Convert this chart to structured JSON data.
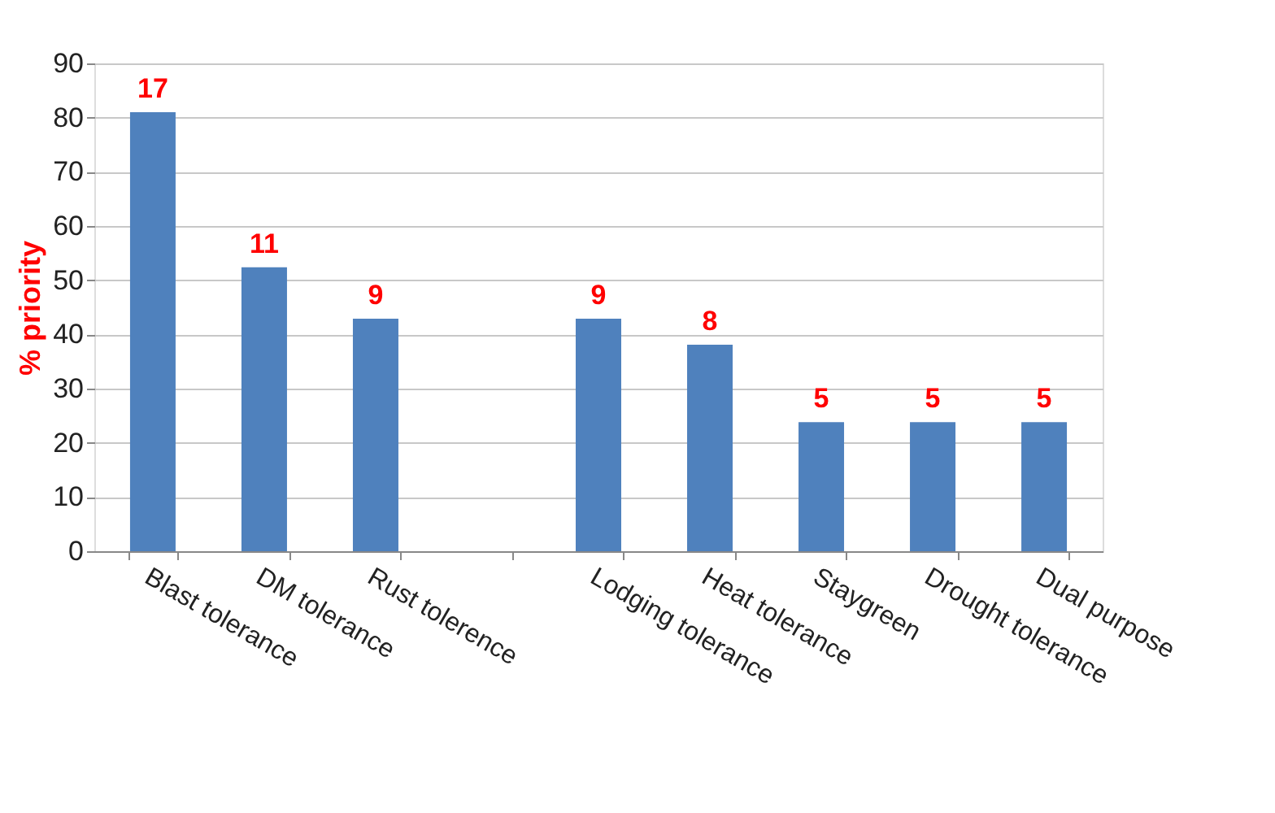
{
  "chart_data": {
    "type": "bar",
    "ylabel": "% priority",
    "categories": [
      "Blast tolerance",
      "DM tolerance",
      "Rust tolerence",
      null,
      "Lodging tolerance",
      "Heat tolerance",
      "Staygreen",
      "Drought tolerance",
      "Dual purpose"
    ],
    "values": [
      81,
      52.4,
      42.9,
      null,
      42.9,
      38.1,
      23.8,
      23.8,
      23.8
    ],
    "annotations": [
      {
        "text": "17",
        "x": "Blast tolerance",
        "y": 81
      },
      {
        "text": "11",
        "x": "DM tolerance",
        "y": 52.4
      },
      {
        "text": "9",
        "x": "Rust tolerence",
        "y": 42.9
      },
      {
        "text": "9",
        "x": "Lodging tolerance",
        "y": 42.9
      },
      {
        "text": "8",
        "x": "Heat tolerance",
        "y": 38.1
      },
      {
        "text": "5",
        "x": "Staygreen",
        "y": 23.8
      },
      {
        "text": "5",
        "x": "Drought tolerance",
        "y": 23.8
      },
      {
        "text": "5",
        "x": "Dual purpose",
        "y": 23.8
      }
    ],
    "color": "#4f81bd",
    "ylim": [
      0,
      90
    ],
    "yticks": [
      0,
      10,
      20,
      30,
      40,
      50,
      60,
      70,
      80,
      90
    ],
    "grid": "y"
  }
}
